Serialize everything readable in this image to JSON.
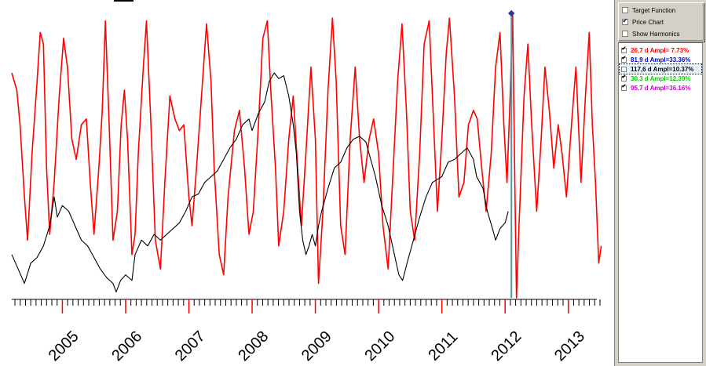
{
  "options": [
    {
      "label": "Target Function",
      "checked": false
    },
    {
      "label": "Price Chart",
      "checked": true
    },
    {
      "label": "Show Harmonics",
      "checked": false
    }
  ],
  "harmonics": [
    {
      "label": "26,7 d  Ampl= 7.73%",
      "checked": true,
      "color": "#ff0000",
      "selected": false
    },
    {
      "label": "81,9 d  Ampl=33.36%",
      "checked": true,
      "color": "#0000cc",
      "selected": false
    },
    {
      "label": "117,6 d  Ampl=10.37%",
      "checked": false,
      "color": "#000000",
      "selected": true
    },
    {
      "label": "30,3 d  Ampl=12.39%",
      "checked": true,
      "color": "#00cc00",
      "selected": false
    },
    {
      "label": "95,7 d  Ampl=36.16%",
      "checked": true,
      "color": "#cc00cc",
      "selected": false
    }
  ],
  "chart_data": {
    "type": "line",
    "xlabel": "",
    "ylabel": "",
    "x_tick_labels": [
      "2005",
      "2006",
      "2007",
      "2008",
      "2009",
      "2010",
      "2011",
      "2012",
      "2013"
    ],
    "x_range": [
      2004.2,
      2013.55
    ],
    "y_range": [
      0,
      100
    ],
    "y_axis_labels_shown": false,
    "marker": {
      "x": 2012.1,
      "color_line": "#4a9aa8",
      "color_point": "#2a3aa0"
    },
    "series": [
      {
        "color": "#ff0000",
        "values": [
          [
            2004.2,
            78
          ],
          [
            2004.28,
            72
          ],
          [
            2004.33,
            60
          ],
          [
            2004.4,
            35
          ],
          [
            2004.45,
            20
          ],
          [
            2004.52,
            50
          ],
          [
            2004.6,
            75
          ],
          [
            2004.65,
            92
          ],
          [
            2004.7,
            88
          ],
          [
            2004.75,
            45
          ],
          [
            2004.8,
            22
          ],
          [
            2004.87,
            40
          ],
          [
            2004.95,
            70
          ],
          [
            2005.02,
            90
          ],
          [
            2005.08,
            80
          ],
          [
            2005.15,
            55
          ],
          [
            2005.22,
            48
          ],
          [
            2005.3,
            60
          ],
          [
            2005.38,
            62
          ],
          [
            2005.44,
            40
          ],
          [
            2005.5,
            22
          ],
          [
            2005.58,
            46
          ],
          [
            2005.63,
            65
          ],
          [
            2005.68,
            96
          ],
          [
            2005.74,
            60
          ],
          [
            2005.8,
            20
          ],
          [
            2005.87,
            30
          ],
          [
            2005.93,
            60
          ],
          [
            2005.98,
            72
          ],
          [
            2006.03,
            55
          ],
          [
            2006.1,
            15
          ],
          [
            2006.15,
            22
          ],
          [
            2006.2,
            50
          ],
          [
            2006.28,
            80
          ],
          [
            2006.33,
            96
          ],
          [
            2006.4,
            60
          ],
          [
            2006.47,
            20
          ],
          [
            2006.55,
            10
          ],
          [
            2006.62,
            40
          ],
          [
            2006.7,
            70
          ],
          [
            2006.78,
            62
          ],
          [
            2006.85,
            58
          ],
          [
            2006.92,
            60
          ],
          [
            2007.0,
            35
          ],
          [
            2007.05,
            25
          ],
          [
            2007.12,
            45
          ],
          [
            2007.2,
            70
          ],
          [
            2007.28,
            95
          ],
          [
            2007.35,
            75
          ],
          [
            2007.4,
            45
          ],
          [
            2007.48,
            15
          ],
          [
            2007.55,
            8
          ],
          [
            2007.62,
            35
          ],
          [
            2007.72,
            58
          ],
          [
            2007.8,
            65
          ],
          [
            2007.88,
            45
          ],
          [
            2007.95,
            22
          ],
          [
            2008.02,
            30
          ],
          [
            2008.1,
            60
          ],
          [
            2008.17,
            90
          ],
          [
            2008.24,
            96
          ],
          [
            2008.3,
            70
          ],
          [
            2008.37,
            45
          ],
          [
            2008.42,
            18
          ],
          [
            2008.5,
            30
          ],
          [
            2008.58,
            55
          ],
          [
            2008.65,
            70
          ],
          [
            2008.72,
            45
          ],
          [
            2008.78,
            25
          ],
          [
            2008.85,
            50
          ],
          [
            2008.93,
            80
          ],
          [
            2009.0,
            55
          ],
          [
            2009.05,
            5
          ],
          [
            2009.12,
            30
          ],
          [
            2009.2,
            72
          ],
          [
            2009.27,
            97
          ],
          [
            2009.33,
            75
          ],
          [
            2009.4,
            25
          ],
          [
            2009.47,
            15
          ],
          [
            2009.55,
            55
          ],
          [
            2009.63,
            80
          ],
          [
            2009.7,
            55
          ],
          [
            2009.77,
            40
          ],
          [
            2009.85,
            55
          ],
          [
            2009.92,
            62
          ],
          [
            2010.0,
            50
          ],
          [
            2010.07,
            25
          ],
          [
            2010.15,
            10
          ],
          [
            2010.22,
            40
          ],
          [
            2010.3,
            75
          ],
          [
            2010.37,
            95
          ],
          [
            2010.44,
            65
          ],
          [
            2010.5,
            30
          ],
          [
            2010.57,
            20
          ],
          [
            2010.65,
            50
          ],
          [
            2010.72,
            88
          ],
          [
            2010.8,
            96
          ],
          [
            2010.87,
            60
          ],
          [
            2010.93,
            30
          ],
          [
            2011.0,
            55
          ],
          [
            2011.07,
            85
          ],
          [
            2011.12,
            97
          ],
          [
            2011.2,
            70
          ],
          [
            2011.27,
            35
          ],
          [
            2011.35,
            40
          ],
          [
            2011.42,
            60
          ],
          [
            2011.5,
            65
          ],
          [
            2011.56,
            62
          ],
          [
            2011.63,
            45
          ],
          [
            2011.7,
            30
          ],
          [
            2011.78,
            50
          ],
          [
            2011.85,
            80
          ],
          [
            2011.92,
            92
          ],
          [
            2011.98,
            60
          ],
          [
            2012.03,
            40
          ],
          [
            2012.08,
            70
          ],
          [
            2012.12,
            98
          ],
          [
            2012.15,
            45
          ],
          [
            2012.18,
            0
          ],
          [
            2012.22,
            25
          ],
          [
            2012.3,
            70
          ],
          [
            2012.36,
            88
          ],
          [
            2012.42,
            60
          ],
          [
            2012.5,
            30
          ],
          [
            2012.57,
            55
          ],
          [
            2012.63,
            80
          ],
          [
            2012.7,
            65
          ],
          [
            2012.77,
            45
          ],
          [
            2012.84,
            60
          ],
          [
            2012.9,
            50
          ],
          [
            2012.97,
            35
          ],
          [
            2013.05,
            60
          ],
          [
            2013.12,
            80
          ],
          [
            2013.2,
            40
          ],
          [
            2013.27,
            70
          ],
          [
            2013.33,
            92
          ],
          [
            2013.38,
            60
          ],
          [
            2013.43,
            40
          ],
          [
            2013.48,
            12
          ],
          [
            2013.52,
            18
          ]
        ]
      },
      {
        "color": "#000000",
        "values": [
          [
            2004.2,
            15
          ],
          [
            2004.3,
            10
          ],
          [
            2004.4,
            5
          ],
          [
            2004.5,
            12
          ],
          [
            2004.6,
            14
          ],
          [
            2004.7,
            18
          ],
          [
            2004.8,
            25
          ],
          [
            2004.87,
            35
          ],
          [
            2004.92,
            28
          ],
          [
            2005.0,
            32
          ],
          [
            2005.1,
            30
          ],
          [
            2005.2,
            25
          ],
          [
            2005.3,
            20
          ],
          [
            2005.4,
            18
          ],
          [
            2005.5,
            14
          ],
          [
            2005.6,
            10
          ],
          [
            2005.7,
            7
          ],
          [
            2005.8,
            5
          ],
          [
            2005.85,
            2
          ],
          [
            2005.92,
            6
          ],
          [
            2006.0,
            8
          ],
          [
            2006.1,
            6
          ],
          [
            2006.15,
            15
          ],
          [
            2006.25,
            20
          ],
          [
            2006.35,
            18
          ],
          [
            2006.45,
            22
          ],
          [
            2006.55,
            20
          ],
          [
            2006.65,
            22
          ],
          [
            2006.75,
            24
          ],
          [
            2006.85,
            26
          ],
          [
            2006.95,
            30
          ],
          [
            2007.05,
            35
          ],
          [
            2007.15,
            36
          ],
          [
            2007.25,
            40
          ],
          [
            2007.35,
            42
          ],
          [
            2007.45,
            44
          ],
          [
            2007.55,
            48
          ],
          [
            2007.65,
            52
          ],
          [
            2007.75,
            55
          ],
          [
            2007.85,
            60
          ],
          [
            2007.95,
            62
          ],
          [
            2008.0,
            58
          ],
          [
            2008.1,
            64
          ],
          [
            2008.2,
            68
          ],
          [
            2008.27,
            75
          ],
          [
            2008.35,
            78
          ],
          [
            2008.42,
            76
          ],
          [
            2008.5,
            77
          ],
          [
            2008.58,
            70
          ],
          [
            2008.65,
            60
          ],
          [
            2008.7,
            50
          ],
          [
            2008.75,
            30
          ],
          [
            2008.8,
            20
          ],
          [
            2008.85,
            15
          ],
          [
            2008.9,
            18
          ],
          [
            2008.95,
            22
          ],
          [
            2009.0,
            18
          ],
          [
            2009.05,
            25
          ],
          [
            2009.1,
            30
          ],
          [
            2009.2,
            38
          ],
          [
            2009.3,
            45
          ],
          [
            2009.4,
            47
          ],
          [
            2009.5,
            52
          ],
          [
            2009.6,
            55
          ],
          [
            2009.7,
            56
          ],
          [
            2009.8,
            54
          ],
          [
            2009.85,
            50
          ],
          [
            2009.95,
            42
          ],
          [
            2010.05,
            32
          ],
          [
            2010.15,
            25
          ],
          [
            2010.25,
            15
          ],
          [
            2010.32,
            8
          ],
          [
            2010.38,
            6
          ],
          [
            2010.45,
            12
          ],
          [
            2010.55,
            20
          ],
          [
            2010.65,
            28
          ],
          [
            2010.75,
            35
          ],
          [
            2010.85,
            40
          ],
          [
            2011.0,
            42
          ],
          [
            2011.1,
            47
          ],
          [
            2011.2,
            48
          ],
          [
            2011.3,
            50
          ],
          [
            2011.4,
            52
          ],
          [
            2011.5,
            48
          ],
          [
            2011.55,
            42
          ],
          [
            2011.65,
            38
          ],
          [
            2011.72,
            30
          ],
          [
            2011.8,
            24
          ],
          [
            2011.85,
            20
          ],
          [
            2011.92,
            24
          ],
          [
            2012.0,
            26
          ],
          [
            2012.05,
            30
          ]
        ]
      }
    ]
  }
}
